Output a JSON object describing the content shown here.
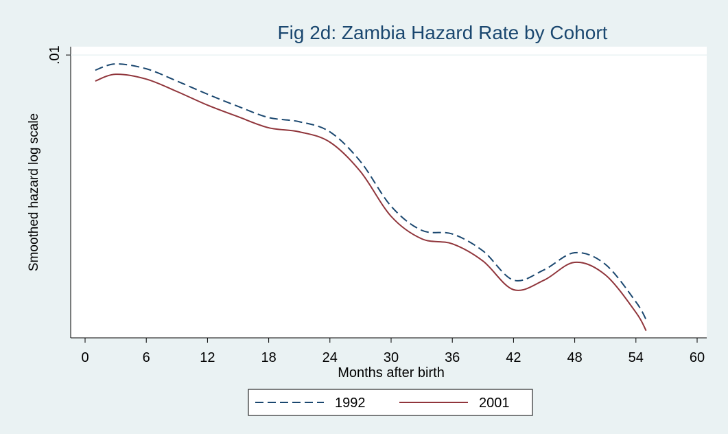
{
  "chart_data": {
    "type": "line",
    "title": "Fig 2d: Zambia Hazard Rate by Cohort",
    "x_label": "Months after birth",
    "y_label": "Smoothed hazard log scale",
    "x": [
      1,
      3,
      6,
      9,
      12,
      15,
      18,
      21,
      24,
      27,
      30,
      33,
      36,
      39,
      42,
      45,
      48,
      51,
      54,
      55
    ],
    "series": [
      {
        "name": "1992",
        "color": "#1a476f",
        "dash": true,
        "values": [
          0.00884,
          0.0093,
          0.00894,
          0.00809,
          0.00727,
          0.00658,
          0.00601,
          0.00581,
          0.00535,
          0.0042,
          0.00292,
          0.0024,
          0.00233,
          0.00203,
          0.0016,
          0.00174,
          0.002,
          0.00182,
          0.00134,
          0.00116
        ]
      },
      {
        "name": "2001",
        "color": "#90353b",
        "dash": false,
        "values": [
          0.00809,
          0.00855,
          0.00822,
          0.00743,
          0.00665,
          0.00605,
          0.00553,
          0.00535,
          0.00492,
          0.00387,
          0.00269,
          0.00224,
          0.00215,
          0.00187,
          0.00148,
          0.0016,
          0.00185,
          0.00167,
          0.00123,
          0.00106
        ]
      }
    ],
    "xlim": [
      0,
      60
    ],
    "xticks": [
      0,
      6,
      12,
      18,
      24,
      30,
      36,
      42,
      48,
      54,
      60
    ],
    "ylim": [
      0.001,
      0.0107
    ],
    "yticks": [
      {
        "value": 0.01,
        "label": ".01"
      }
    ],
    "log_scale_y": true,
    "grid": true,
    "legend": "bottom"
  }
}
